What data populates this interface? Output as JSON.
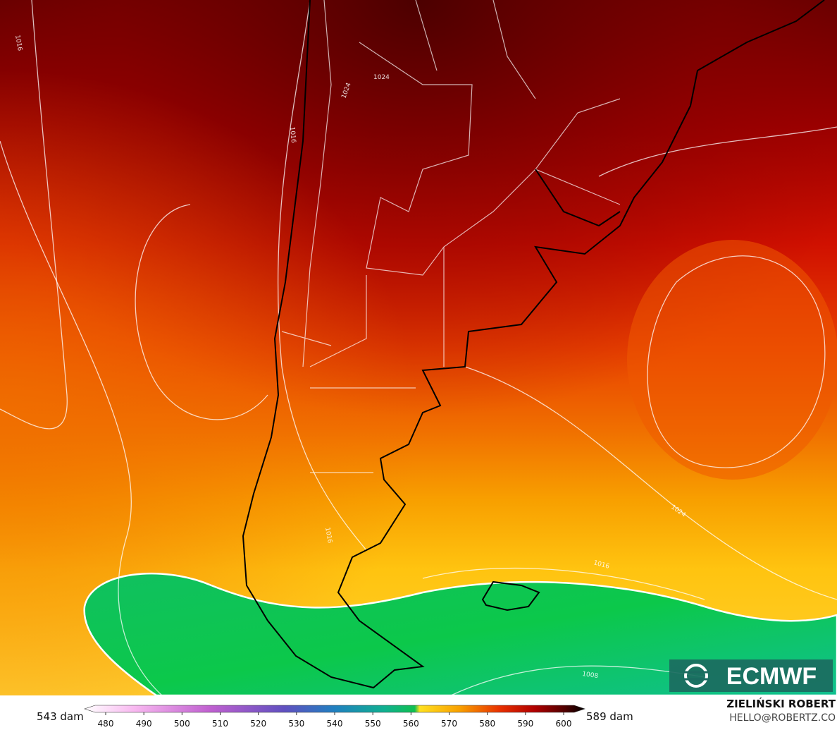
{
  "map": {
    "isobar_labels": [
      "1016",
      "1024",
      "1016",
      "1024",
      "1016",
      "1024",
      "1016",
      "1008"
    ],
    "colorbar": {
      "min_label": "543 dam",
      "max_label": "589 dam",
      "ticks": [
        480,
        490,
        500,
        510,
        520,
        530,
        540,
        550,
        560,
        570,
        580,
        590,
        600
      ]
    },
    "logo": "ECMWF",
    "author": "ZIELIŃSKI ROBERT",
    "contact": "HELLO@ROBERTZ.CO"
  }
}
